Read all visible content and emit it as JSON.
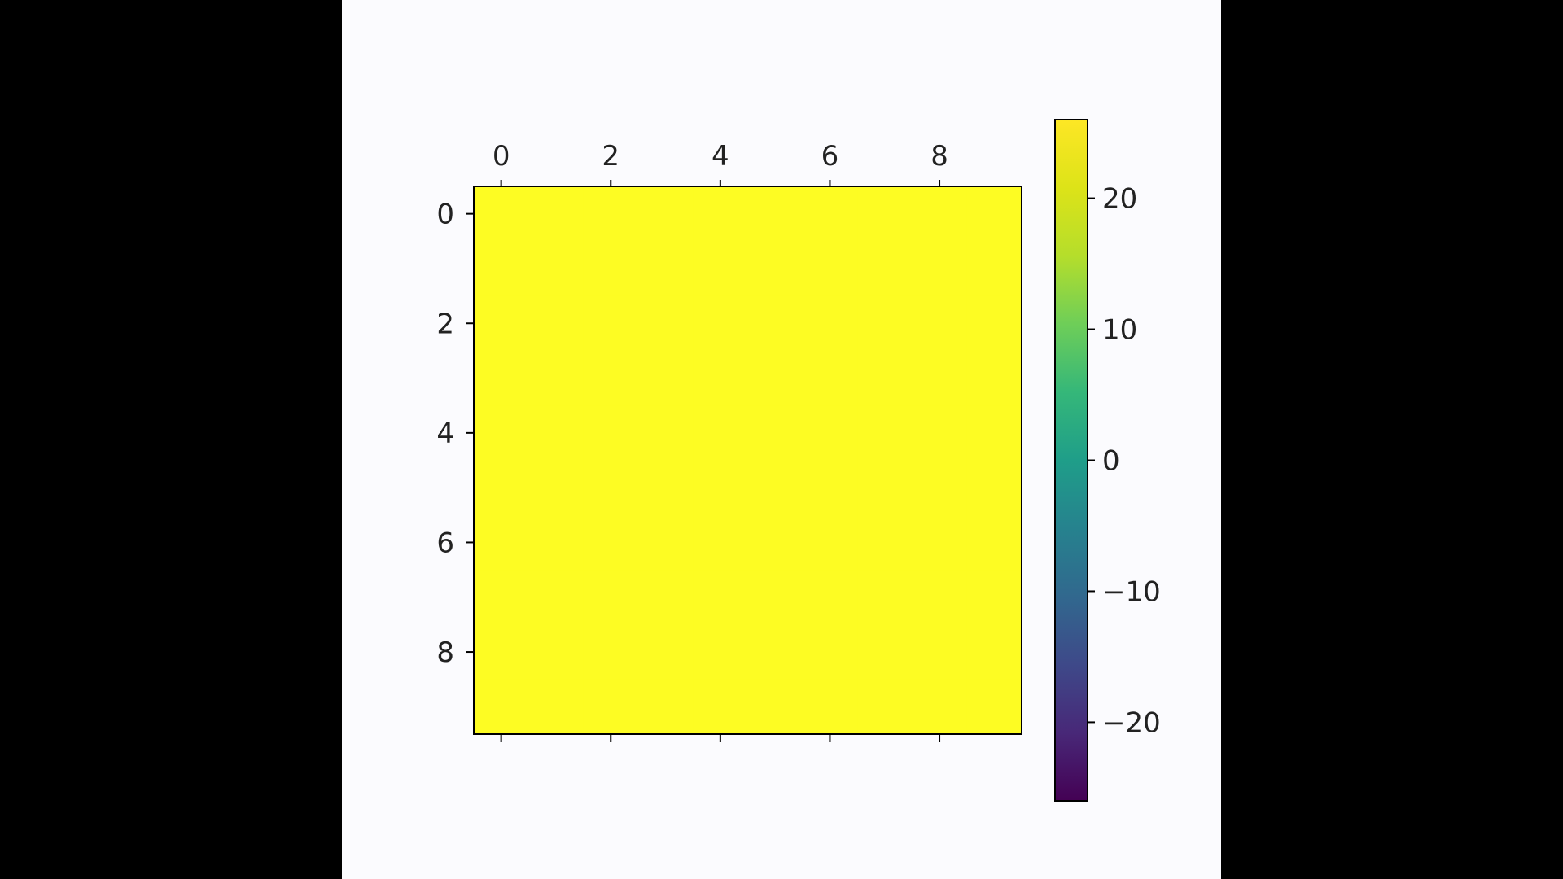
{
  "figure": {
    "background_color": "#fbfbfe",
    "letterbox_color": "#000000"
  },
  "chart_data": {
    "type": "heatmap",
    "rows": 10,
    "cols": 10,
    "uniform_value": 26,
    "values_note": "All cells show the maximum colormap color (bright yellow).",
    "cell_color": "#fdfc23",
    "xticks": [
      0,
      2,
      4,
      6,
      8
    ],
    "yticks": [
      0,
      2,
      4,
      6,
      8
    ],
    "xtick_position": "top",
    "colorbar": {
      "cmap": "viridis",
      "vmin": -26,
      "vmax": 26,
      "ticks": [
        20,
        10,
        0,
        -10,
        -20
      ],
      "tick_labels": [
        "20",
        "10",
        "0",
        "−10",
        "−20"
      ],
      "position": "right"
    },
    "title": "",
    "xlabel": "",
    "ylabel": ""
  }
}
